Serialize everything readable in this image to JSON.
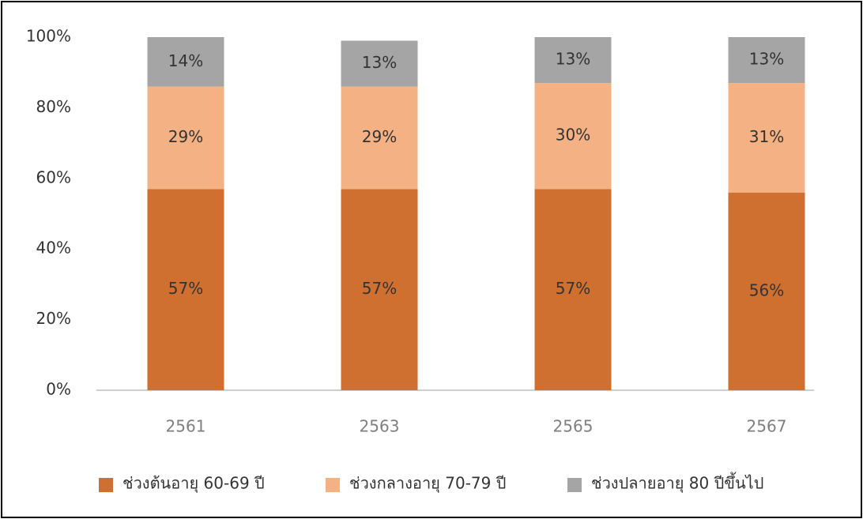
{
  "chart_data": {
    "type": "stacked-bar",
    "categories": [
      "2561",
      "2563",
      "2565",
      "2567"
    ],
    "series": [
      {
        "name": "ช่วงต้นอายุ 60-69 ปี",
        "color": "#cf7031",
        "values": [
          57,
          57,
          57,
          56
        ],
        "value_labels": [
          "57%",
          "57%",
          "57%",
          "56%"
        ]
      },
      {
        "name": "ช่วงกลางอายุ 70-79 ปี",
        "color": "#f4b183",
        "values": [
          29,
          29,
          30,
          31
        ],
        "value_labels": [
          "29%",
          "29%",
          "30%",
          "31%"
        ]
      },
      {
        "name": "ช่วงปลายอายุ 80 ปีขึ้นไป",
        "color": "#a5a5a5",
        "values": [
          14,
          13,
          13,
          13
        ],
        "value_labels": [
          "14%",
          "13%",
          "13%",
          "13%"
        ]
      }
    ],
    "ylim": [
      0,
      100
    ],
    "yticks": [
      {
        "value": 0,
        "label": "0%"
      },
      {
        "value": 20,
        "label": "20%"
      },
      {
        "value": 40,
        "label": "40%"
      },
      {
        "value": 60,
        "label": "60%"
      },
      {
        "value": 80,
        "label": "80%"
      },
      {
        "value": 100,
        "label": "100%"
      }
    ],
    "grid": false,
    "legend": "bottom"
  }
}
